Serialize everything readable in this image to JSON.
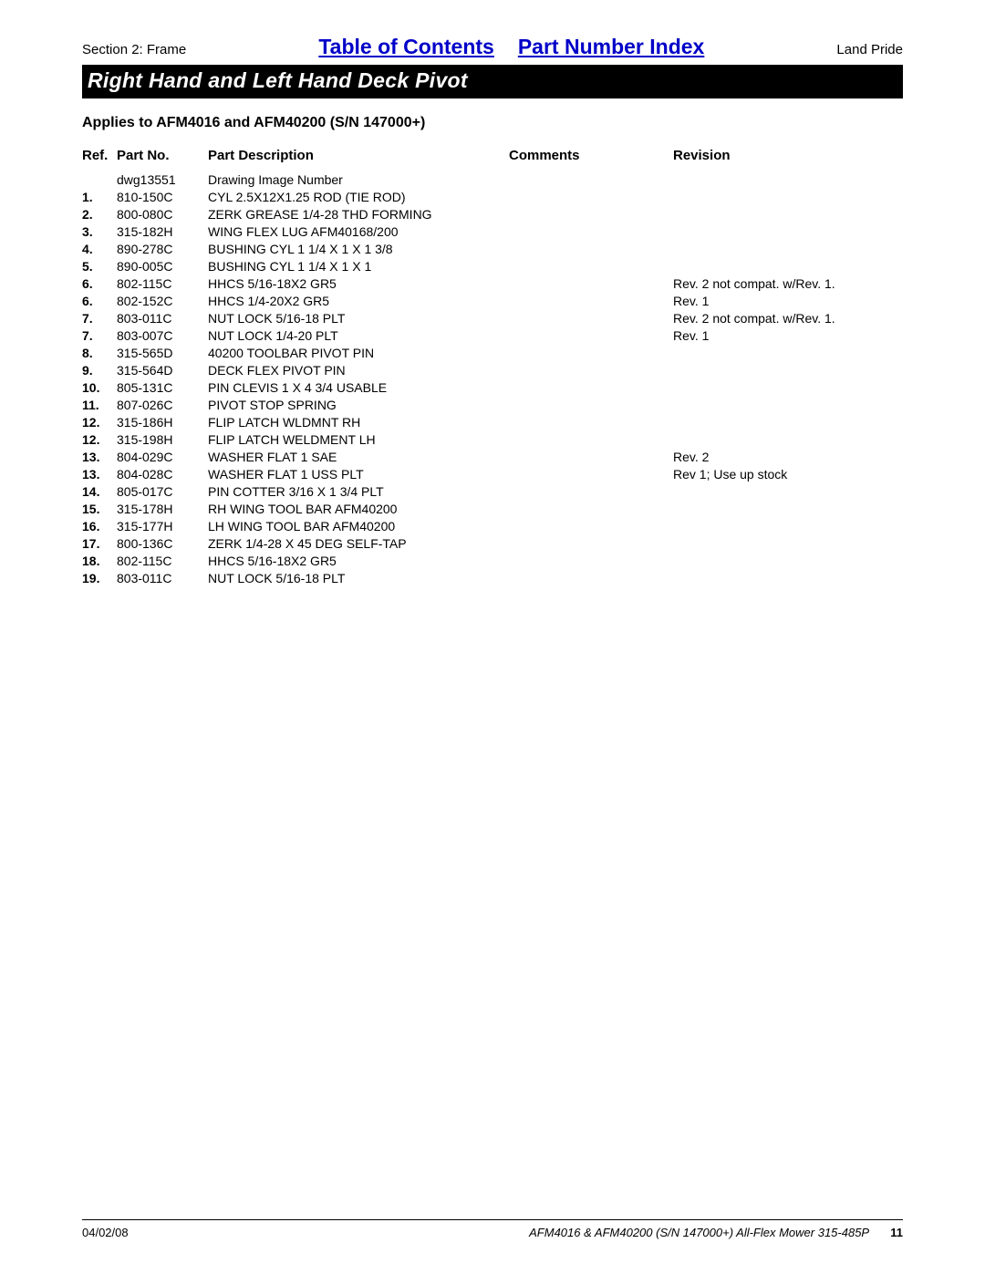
{
  "header": {
    "section_label": "Section 2: Frame",
    "toc_link": "Table of Contents",
    "pni_link": "Part Number Index",
    "brand": "Land Pride"
  },
  "title": "Right Hand and Left Hand Deck Pivot",
  "applies": "Applies to AFM4016 and AFM40200 (S/N 147000+)",
  "columns": {
    "ref": "Ref.",
    "partno": "Part No.",
    "desc": "Part Description",
    "comments": "Comments",
    "rev": "Revision"
  },
  "rows": [
    {
      "ref": "",
      "partno": "dwg13551",
      "desc": "Drawing Image Number",
      "comments": "",
      "rev": ""
    },
    {
      "ref": "1.",
      "partno": "810-150C",
      "desc": "CYL 2.5X12X1.25 ROD (TIE ROD)",
      "comments": "",
      "rev": ""
    },
    {
      "ref": "2.",
      "partno": "800-080C",
      "desc": "ZERK GREASE 1/4-28 THD FORMING",
      "comments": "",
      "rev": ""
    },
    {
      "ref": "3.",
      "partno": "315-182H",
      "desc": "WING FLEX LUG AFM40168/200",
      "comments": "",
      "rev": ""
    },
    {
      "ref": "4.",
      "partno": "890-278C",
      "desc": "BUSHING CYL 1 1/4 X 1 X 1 3/8",
      "comments": "",
      "rev": ""
    },
    {
      "ref": "5.",
      "partno": "890-005C",
      "desc": "BUSHING CYL 1 1/4 X 1 X 1",
      "comments": "",
      "rev": ""
    },
    {
      "ref": "6.",
      "partno": "802-115C",
      "desc": "HHCS 5/16-18X2 GR5",
      "comments": "",
      "rev": "Rev. 2 not compat. w/Rev. 1."
    },
    {
      "ref": "6.",
      "partno": "802-152C",
      "desc": "HHCS 1/4-20X2 GR5",
      "comments": "",
      "rev": "Rev. 1"
    },
    {
      "ref": "7.",
      "partno": "803-011C",
      "desc": "NUT LOCK 5/16-18 PLT",
      "comments": "",
      "rev": "Rev. 2 not compat. w/Rev. 1."
    },
    {
      "ref": "7.",
      "partno": "803-007C",
      "desc": "NUT LOCK 1/4-20 PLT",
      "comments": "",
      "rev": "Rev. 1"
    },
    {
      "ref": "8.",
      "partno": "315-565D",
      "desc": "40200 TOOLBAR PIVOT PIN",
      "comments": "",
      "rev": ""
    },
    {
      "ref": "9.",
      "partno": "315-564D",
      "desc": "DECK FLEX PIVOT PIN",
      "comments": "",
      "rev": ""
    },
    {
      "ref": "10.",
      "partno": "805-131C",
      "desc": "PIN CLEVIS 1 X 4 3/4 USABLE",
      "comments": "",
      "rev": ""
    },
    {
      "ref": "11.",
      "partno": "807-026C",
      "desc": "PIVOT STOP SPRING",
      "comments": "",
      "rev": ""
    },
    {
      "ref": "12.",
      "partno": "315-186H",
      "desc": "FLIP LATCH WLDMNT RH",
      "comments": "",
      "rev": ""
    },
    {
      "ref": "12.",
      "partno": "315-198H",
      "desc": "FLIP LATCH WELDMENT LH",
      "comments": "",
      "rev": ""
    },
    {
      "ref": "13.",
      "partno": "804-029C",
      "desc": "WASHER FLAT 1 SAE",
      "comments": "",
      "rev": "Rev. 2"
    },
    {
      "ref": "13.",
      "partno": "804-028C",
      "desc": "WASHER FLAT 1 USS PLT",
      "comments": "",
      "rev": "Rev 1; Use up stock"
    },
    {
      "ref": "14.",
      "partno": "805-017C",
      "desc": "PIN COTTER 3/16 X 1 3/4 PLT",
      "comments": "",
      "rev": ""
    },
    {
      "ref": "15.",
      "partno": "315-178H",
      "desc": "RH WING TOOL BAR AFM40200",
      "comments": "",
      "rev": ""
    },
    {
      "ref": "16.",
      "partno": "315-177H",
      "desc": "LH WING TOOL BAR AFM40200",
      "comments": "",
      "rev": ""
    },
    {
      "ref": "17.",
      "partno": "800-136C",
      "desc": "ZERK 1/4-28 X 45 DEG SELF-TAP",
      "comments": "",
      "rev": ""
    },
    {
      "ref": "18.",
      "partno": "802-115C",
      "desc": "HHCS 5/16-18X2 GR5",
      "comments": "",
      "rev": ""
    },
    {
      "ref": "19.",
      "partno": "803-011C",
      "desc": "NUT LOCK 5/16-18 PLT",
      "comments": "",
      "rev": ""
    }
  ],
  "footer": {
    "date": "04/02/08",
    "doc": "AFM4016 & AFM40200 (S/N 147000+) All-Flex Mower 315-485P",
    "page": "11"
  }
}
